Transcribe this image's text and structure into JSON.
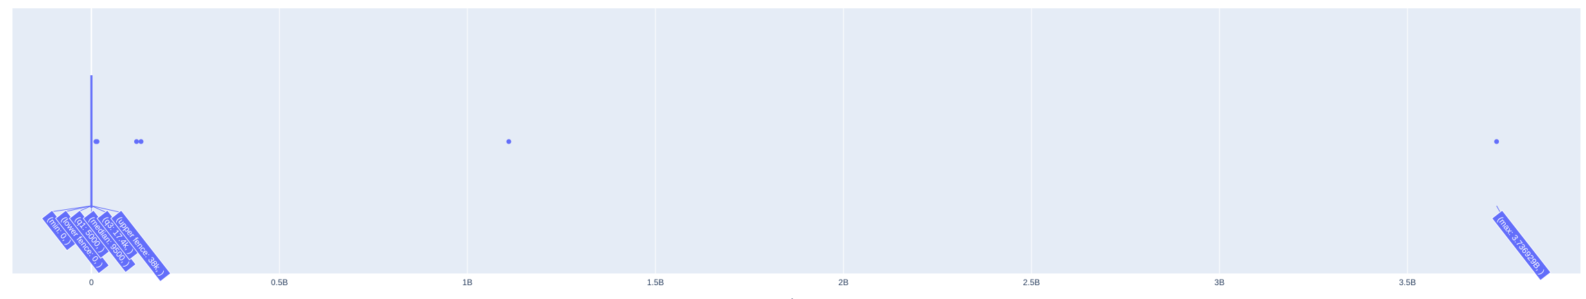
{
  "chart_data": {
    "type": "box",
    "orientation": "horizontal",
    "xlabel": "price",
    "xlim": [
      -210000000,
      3960000000
    ],
    "x_ticks": [
      {
        "value": 0,
        "label": "0"
      },
      {
        "value": 500000000,
        "label": "0.5B"
      },
      {
        "value": 1000000000,
        "label": "1B"
      },
      {
        "value": 1500000000,
        "label": "1.5B"
      },
      {
        "value": 2000000000,
        "label": "2B"
      },
      {
        "value": 2500000000,
        "label": "2.5B"
      },
      {
        "value": 3000000000,
        "label": "3B"
      },
      {
        "value": 3500000000,
        "label": "3.5B"
      }
    ],
    "stats": {
      "min": 0,
      "lower_fence": 0,
      "q1": 5000,
      "median": 9500,
      "q3": 17400,
      "upper_fence": 38000,
      "max": 3736929000
    },
    "outliers": [
      12000000,
      15000000,
      120000000,
      132000000,
      1110000000,
      3736929000
    ],
    "hover_labels": [
      {
        "key": "min",
        "text": "(min: 0, )"
      },
      {
        "key": "lower_fence",
        "text": "(lower fence: 0, )"
      },
      {
        "key": "q1",
        "text": "(q1: 5000, )"
      },
      {
        "key": "median",
        "text": "(median: 9500, )"
      },
      {
        "key": "q3",
        "text": "(q3: 17.4k, )"
      },
      {
        "key": "upper_fence",
        "text": "(upper fence: 38k, )"
      },
      {
        "key": "max",
        "text": "(max: 3.736929B, )"
      }
    ],
    "colors": {
      "plot_bg": "#e5ecf6",
      "grid": "#ffffff",
      "series": "#636efa",
      "text": "#2a3f5f"
    }
  }
}
